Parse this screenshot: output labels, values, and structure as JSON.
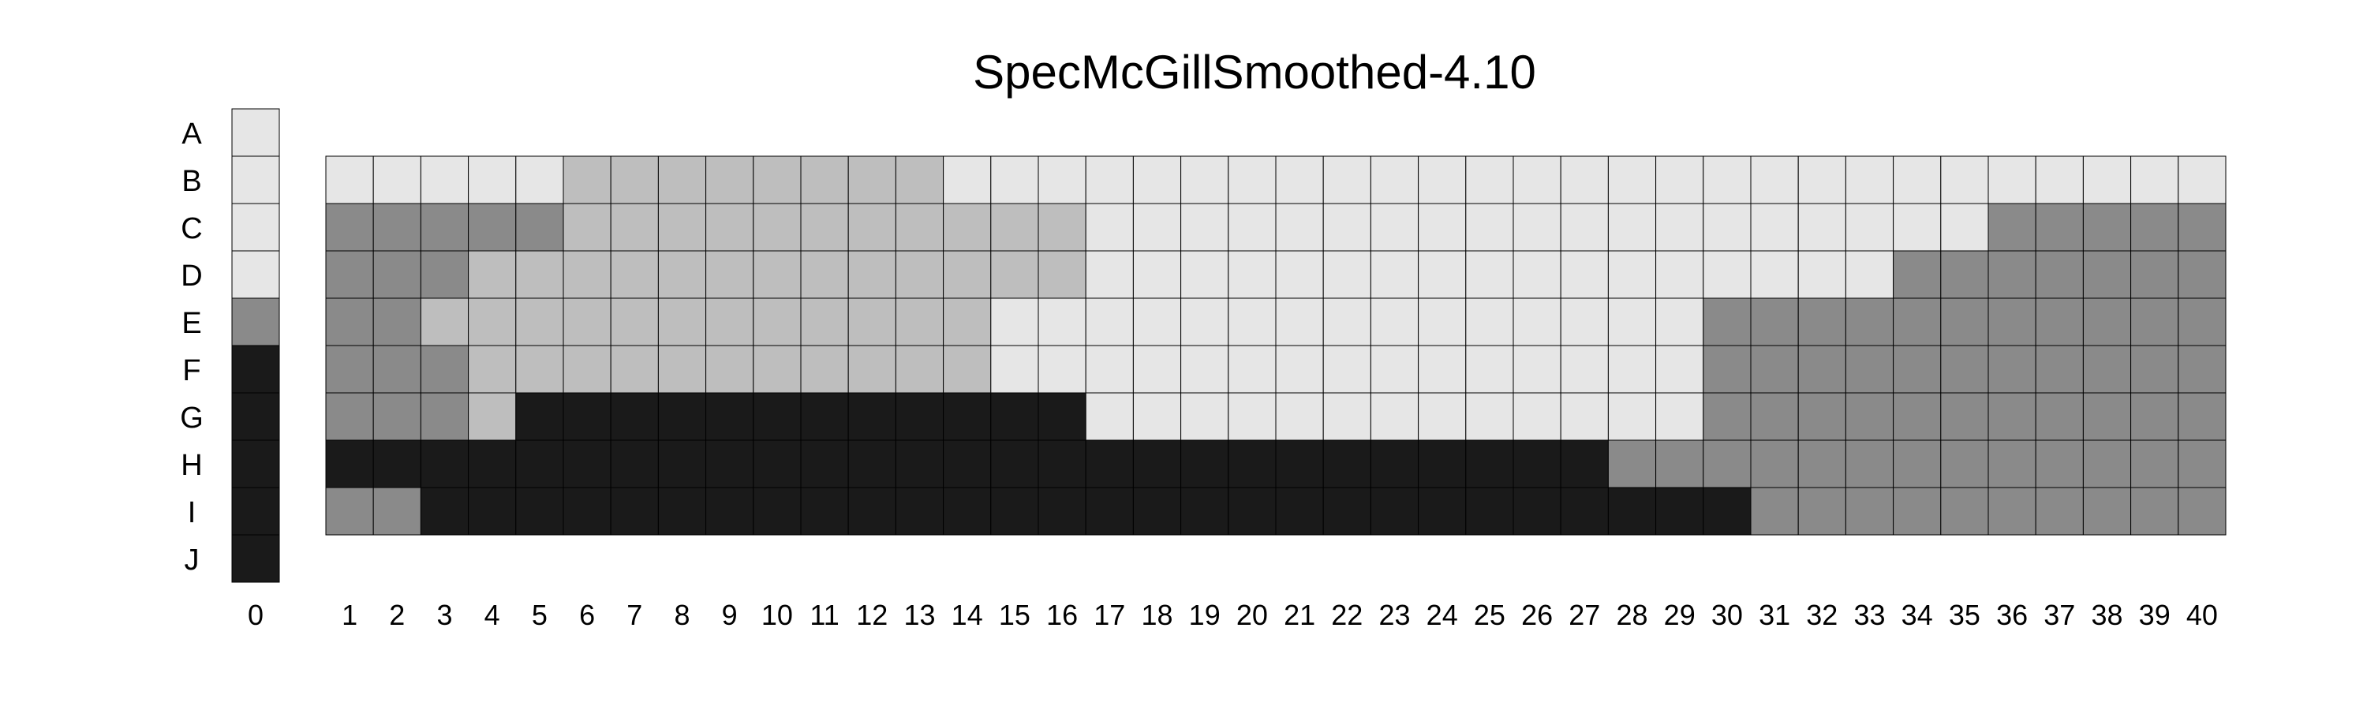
{
  "chart_data": {
    "type": "heatmap",
    "title": "SpecMcGillSmoothed-4.10",
    "rows": [
      "A",
      "B",
      "C",
      "D",
      "E",
      "F",
      "G",
      "H",
      "I",
      "J"
    ],
    "columns": [
      "0",
      "1",
      "2",
      "3",
      "4",
      "5",
      "6",
      "7",
      "8",
      "9",
      "10",
      "11",
      "12",
      "13",
      "14",
      "15",
      "16",
      "17",
      "18",
      "19",
      "20",
      "21",
      "22",
      "23",
      "24",
      "25",
      "26",
      "27",
      "28",
      "29",
      "30",
      "31",
      "32",
      "33",
      "34",
      "35",
      "36",
      "37",
      "38",
      "39",
      "40"
    ],
    "reference_column": {
      "label": "0",
      "values": {
        "A": "L",
        "B": "L",
        "C": "L",
        "D": "L",
        "E": "D",
        "F": "B",
        "G": "B",
        "H": "B",
        "I": "B",
        "J": "B"
      }
    },
    "grid_rows": [
      "B",
      "C",
      "D",
      "E",
      "F",
      "G",
      "H",
      "I"
    ],
    "grid": [
      "LLLLLMMMMMMMMLLLLLLLLLLLLLLLLLLLLLLLLLLL",
      "DDDDDMMMMMMMMMMMLLLLLLLLLLLLLLLLLLLDDDDDD",
      "DDDMMMMMMMMMMMMMLLLLLLLLLLLLLLLLLDDDDDDDDD",
      "DDMMMMMMMMMMMMLLLLLLLLLLLLLLLDDDDDDDDDDDDD",
      "DDDMMMMMMMMMMMLLLLLLLLLLLLLLLDDDDDDDDDDDDD",
      "DDDMBBBBBBBBBBBBLLLLLLLLLLLLLDDDDDDDDDDDDD",
      "BBBBBBBBBBBBBBBBBBBBBBBBBBBDDDDDDDDDDDDDDD",
      "DDBBBBBBBBBBBBBBBBBBBBBBBBBBBBDDDDDDDDDDDD"
    ],
    "legend_codes": {
      "L": "#e6e6e6",
      "M": "#bebebe",
      "D": "#8a8a8a",
      "B": "#1a1a1a"
    }
  }
}
